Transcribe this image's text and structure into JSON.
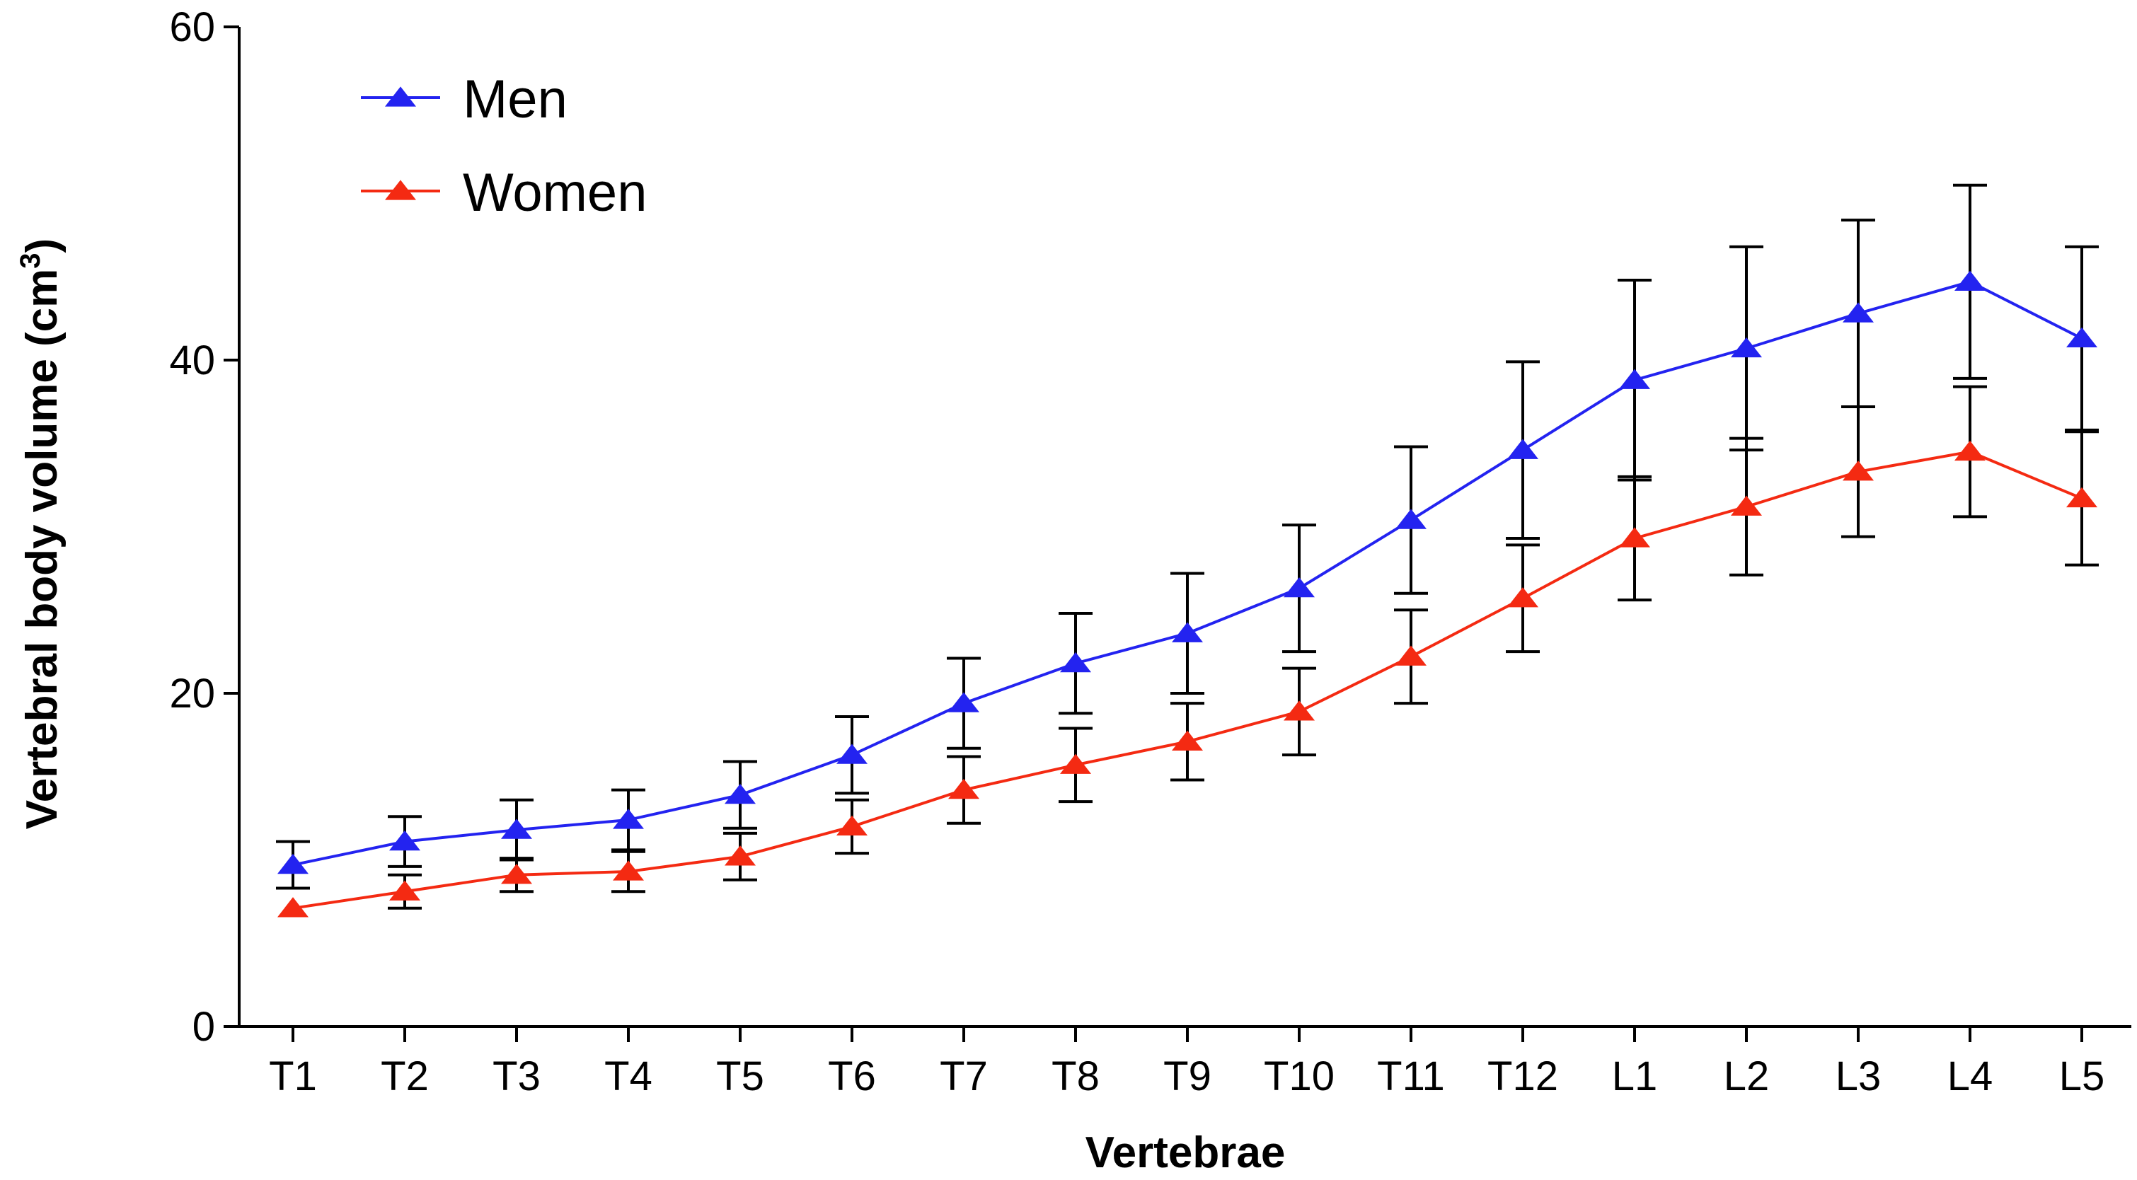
{
  "chart_data": {
    "type": "line",
    "title": "",
    "xlabel": "Vertebrae",
    "ylabel_main": "Vertebral body volume (cm",
    "ylabel_sup": "3",
    "ylabel_close": ")",
    "ylim": [
      0,
      60
    ],
    "yticks": [
      0,
      20,
      40,
      60
    ],
    "grid": false,
    "legend_position": "top-left",
    "categories": [
      "T1",
      "T2",
      "T3",
      "T4",
      "T5",
      "T6",
      "T7",
      "T8",
      "T9",
      "T10",
      "T11",
      "T12",
      "L1",
      "L2",
      "L3",
      "L4",
      "L5"
    ],
    "series": [
      {
        "name": "Men",
        "color": "#2323f0",
        "marker": "triangle",
        "values": [
          9.7,
          11.1,
          11.8,
          12.4,
          13.9,
          16.3,
          19.4,
          21.8,
          23.6,
          26.3,
          30.4,
          34.6,
          38.8,
          40.7,
          42.8,
          44.7,
          41.3
        ],
        "error": [
          1.4,
          1.5,
          1.8,
          1.8,
          2.0,
          2.3,
          2.7,
          3.0,
          3.6,
          3.8,
          4.4,
          5.3,
          6.0,
          6.1,
          5.6,
          5.8,
          5.5
        ]
      },
      {
        "name": "Women",
        "color": "#f42a12",
        "marker": "triangle",
        "values": [
          7.1,
          8.1,
          9.1,
          9.3,
          10.2,
          12.0,
          14.2,
          15.7,
          17.1,
          18.9,
          22.2,
          25.7,
          29.3,
          31.2,
          33.3,
          34.5,
          31.7
        ],
        "error": [
          0.0,
          1.0,
          1.0,
          1.2,
          1.4,
          1.6,
          2.0,
          2.2,
          2.3,
          2.6,
          2.8,
          3.2,
          3.7,
          4.1,
          3.9,
          3.9,
          4.0
        ]
      }
    ]
  }
}
